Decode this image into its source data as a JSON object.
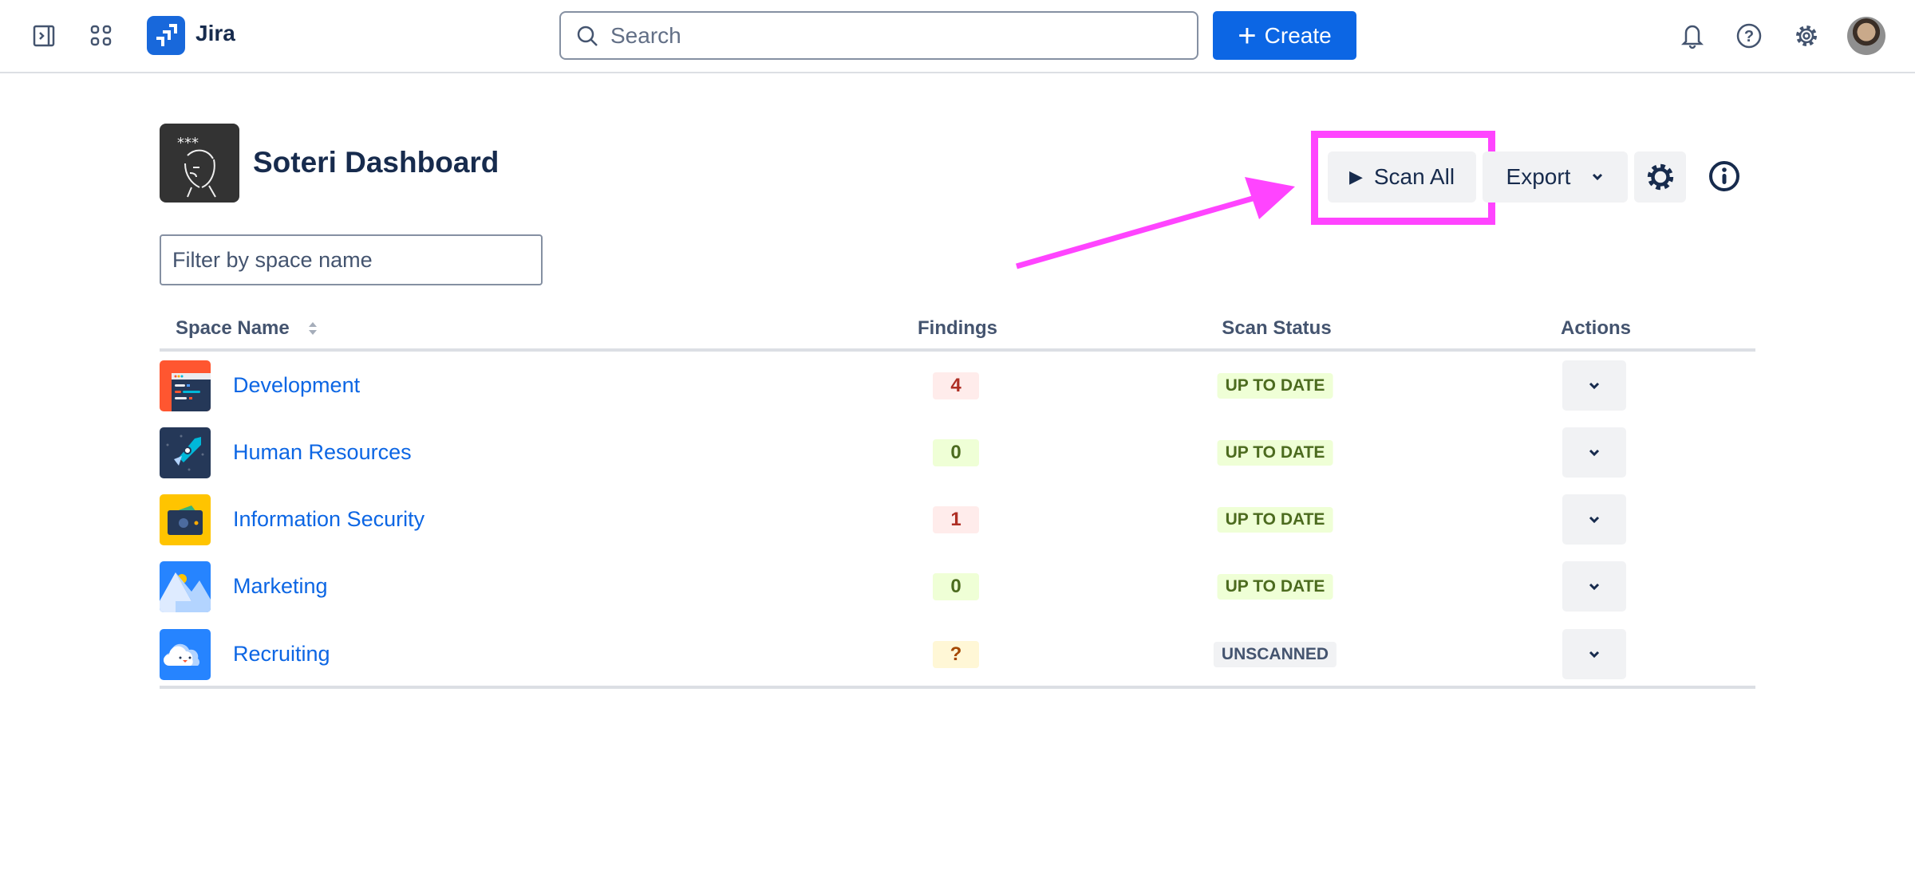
{
  "topbar": {
    "app_name": "Jira",
    "search_placeholder": "Search",
    "create_label": "Create",
    "icons": [
      "sidebar-toggle-icon",
      "app-switcher-icon",
      "bell-icon",
      "help-icon",
      "settings-icon"
    ]
  },
  "page": {
    "title": "Soteri Dashboard",
    "scan_all_label": "Scan All",
    "export_label": "Export",
    "filter_placeholder": "Filter by space name"
  },
  "annotation": {
    "color": "#ff44ff"
  },
  "table": {
    "columns": {
      "name": "Space Name",
      "findings": "Findings",
      "status": "Scan Status",
      "actions": "Actions"
    },
    "rows": [
      {
        "name": "Development",
        "findings": "4",
        "findings_level": "danger",
        "status": "UP TO DATE",
        "status_level": "success",
        "icon": "development-space-icon"
      },
      {
        "name": "Human Resources",
        "findings": "0",
        "findings_level": "success",
        "status": "UP TO DATE",
        "status_level": "success",
        "icon": "rocket-space-icon"
      },
      {
        "name": "Information Security",
        "findings": "1",
        "findings_level": "danger",
        "status": "UP TO DATE",
        "status_level": "success",
        "icon": "wallet-space-icon"
      },
      {
        "name": "Marketing",
        "findings": "0",
        "findings_level": "success",
        "status": "UP TO DATE",
        "status_level": "success",
        "icon": "mountain-space-icon"
      },
      {
        "name": "Recruiting",
        "findings": "?",
        "findings_level": "warning",
        "status": "UNSCANNED",
        "status_level": "neutral",
        "icon": "cloud-space-icon"
      }
    ]
  },
  "colors": {
    "link": "#0c66e4",
    "danger_bg": "#ffeceb",
    "danger_fg": "#ae2e24",
    "success_bg": "#efffd6",
    "success_fg": "#4c6b1f",
    "warning_bg": "#fff7d6",
    "warning_fg": "#a54800",
    "neutral_bg": "#f1f2f4",
    "neutral_fg": "#44546f"
  }
}
